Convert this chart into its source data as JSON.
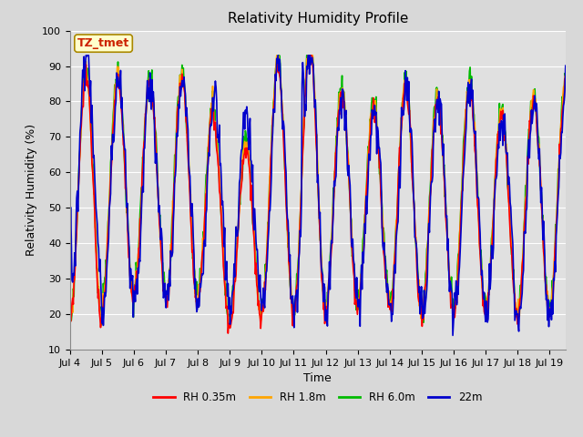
{
  "title": "Relativity Humidity Profile",
  "xlabel": "Time",
  "ylabel": "Relativity Humidity (%)",
  "ylim": [
    10,
    100
  ],
  "n_days": 15.5,
  "xtick_labels": [
    "Jul 4",
    "Jul 5",
    "Jul 6",
    "Jul 7",
    "Jul 8",
    "Jul 9",
    "Jul 10",
    "Jul 11",
    "Jul 12",
    "Jul 13",
    "Jul 14",
    "Jul 15",
    "Jul 16",
    "Jul 17",
    "Jul 18",
    "Jul 19"
  ],
  "series_colors": [
    "#ff0000",
    "#ffa500",
    "#00bb00",
    "#0000cc"
  ],
  "series_labels": [
    "RH 0.35m",
    "RH 1.8m",
    "RH 6.0m",
    "22m"
  ],
  "fig_bg_color": "#d8d8d8",
  "plot_bg_color": "#e0e0e0",
  "annotation_text": "TZ_tmet",
  "annotation_color": "#cc2200",
  "annotation_bg": "#ffffcc",
  "annotation_border": "#aa8800",
  "title_fontsize": 11,
  "label_fontsize": 9,
  "tick_fontsize": 8,
  "linewidth": 1.2
}
